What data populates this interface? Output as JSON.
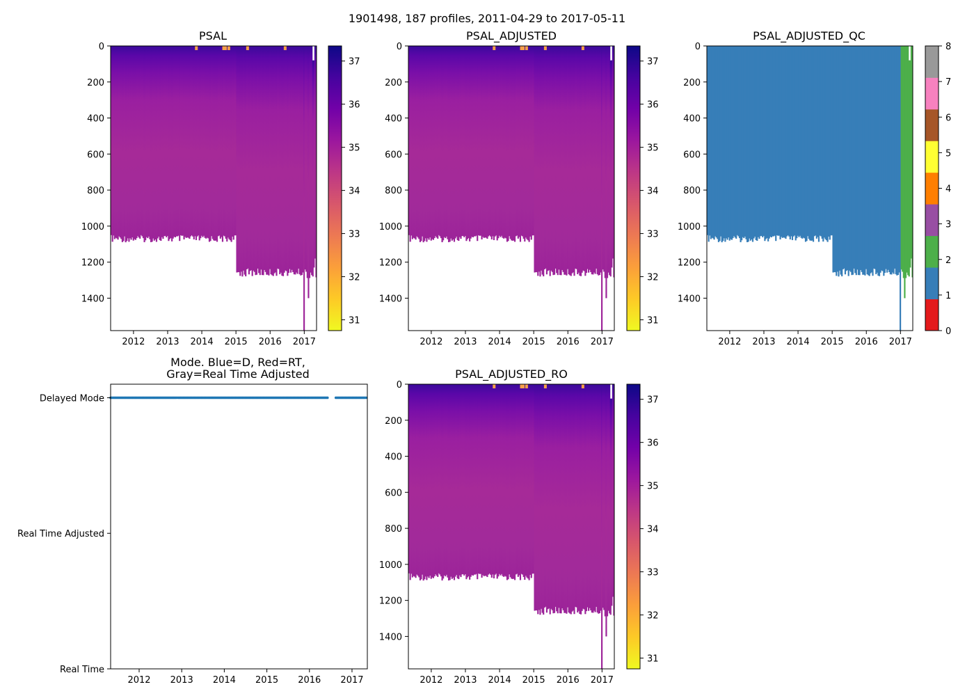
{
  "figure": {
    "suptitle": "1901498, 187 profiles, 2011-04-29 to 2017-05-11"
  },
  "colors": {
    "plasma_r": [
      "#f0f921",
      "#fdca26",
      "#fb9f3a",
      "#ed7953",
      "#d8576b",
      "#bd3786",
      "#9c179e",
      "#7201a8",
      "#46039f",
      "#0d0887"
    ],
    "qc": [
      "#e41a1c",
      "#377eb8",
      "#4daf4a",
      "#984ea3",
      "#ff7f00",
      "#ffff33",
      "#a65628",
      "#f781bf",
      "#999999"
    ],
    "mode_points": "#1f77b4"
  },
  "chart_data": [
    {
      "id": "psal",
      "type": "heatmap",
      "title": "PSAL",
      "xlabel": "",
      "ylabel": "",
      "x_ticks": [
        "2012",
        "2013",
        "2014",
        "2015",
        "2016",
        "2017"
      ],
      "x_tick_values": [
        2012,
        2013,
        2014,
        2015,
        2016,
        2017
      ],
      "xlim": [
        2011.33,
        2017.36
      ],
      "y_ticks": [
        "0",
        "200",
        "400",
        "600",
        "800",
        "1000",
        "1200",
        "1400"
      ],
      "y_tick_values": [
        0,
        200,
        400,
        600,
        800,
        1000,
        1200,
        1400
      ],
      "ylim": [
        1580,
        0
      ],
      "colorbar": {
        "ticks": [
          "31",
          "32",
          "33",
          "34",
          "35",
          "36",
          "37"
        ],
        "tick_values": [
          31,
          32,
          33,
          34,
          35,
          36,
          37
        ],
        "range": [
          30.75,
          37.35
        ],
        "cmap": "plasma_r"
      },
      "values_description": {
        "surface_salinity": 36.5,
        "deep_salinity": 34.8,
        "max_depth_2011_2014": 1060,
        "max_depth_2015_2017": 1250
      }
    },
    {
      "id": "psal-adjusted",
      "type": "heatmap",
      "title": "PSAL_ADJUSTED",
      "x_ticks": [
        "2012",
        "2013",
        "2014",
        "2015",
        "2016",
        "2017"
      ],
      "x_tick_values": [
        2012,
        2013,
        2014,
        2015,
        2016,
        2017
      ],
      "xlim": [
        2011.33,
        2017.36
      ],
      "y_ticks": [
        "0",
        "200",
        "400",
        "600",
        "800",
        "1000",
        "1200",
        "1400"
      ],
      "y_tick_values": [
        0,
        200,
        400,
        600,
        800,
        1000,
        1200,
        1400
      ],
      "ylim": [
        1580,
        0
      ],
      "colorbar": {
        "ticks": [
          "31",
          "32",
          "33",
          "34",
          "35",
          "36",
          "37"
        ],
        "tick_values": [
          31,
          32,
          33,
          34,
          35,
          36,
          37
        ],
        "range": [
          30.75,
          37.35
        ],
        "cmap": "plasma_r"
      }
    },
    {
      "id": "psal-adjusted-qc",
      "type": "heatmap",
      "title": "PSAL_ADJUSTED_QC",
      "x_ticks": [
        "2012",
        "2013",
        "2014",
        "2015",
        "2016",
        "2017"
      ],
      "x_tick_values": [
        2012,
        2013,
        2014,
        2015,
        2016,
        2017
      ],
      "xlim": [
        2011.33,
        2017.36
      ],
      "y_ticks": [
        "0",
        "200",
        "400",
        "600",
        "800",
        "1000",
        "1200",
        "1400"
      ],
      "y_tick_values": [
        0,
        200,
        400,
        600,
        800,
        1000,
        1200,
        1400
      ],
      "ylim": [
        1580,
        0
      ],
      "colorbar": {
        "ticks": [
          "0",
          "1",
          "2",
          "3",
          "4",
          "5",
          "6",
          "7",
          "8"
        ],
        "tick_values": [
          0,
          1,
          2,
          3,
          4,
          5,
          6,
          7,
          8
        ],
        "range": [
          0,
          8
        ],
        "cmap": "qc"
      },
      "qc_segments": [
        {
          "start": 2011.33,
          "end": 2017.0,
          "flag": 1
        },
        {
          "start": 2017.0,
          "end": 2017.36,
          "flag": 2
        }
      ]
    },
    {
      "id": "mode",
      "type": "scatter",
      "title": "Mode. Blue=D, Red=RT,",
      "title_line2": "Gray=Real Time Adjusted",
      "x_ticks": [
        "2012",
        "2013",
        "2014",
        "2015",
        "2016",
        "2017"
      ],
      "x_tick_values": [
        2012,
        2013,
        2014,
        2015,
        2016,
        2017
      ],
      "xlim": [
        2011.33,
        2017.36
      ],
      "y_ticks": [
        "Delayed Mode",
        "Real Time Adjusted",
        "Real Time"
      ],
      "y_tick_values": [
        2,
        1,
        0
      ],
      "ylim": [
        0,
        2.1
      ],
      "series": [
        {
          "name": "Delayed Mode",
          "y": 2,
          "ranges": [
            [
              2011.33,
              2016.45
            ],
            [
              2016.62,
              2017.36
            ]
          ]
        }
      ]
    },
    {
      "id": "psal-adjusted-ro",
      "type": "heatmap",
      "title": "PSAL_ADJUSTED_RO",
      "x_ticks": [
        "2012",
        "2013",
        "2014",
        "2015",
        "2016",
        "2017"
      ],
      "x_tick_values": [
        2012,
        2013,
        2014,
        2015,
        2016,
        2017
      ],
      "xlim": [
        2011.33,
        2017.36
      ],
      "y_ticks": [
        "0",
        "200",
        "400",
        "600",
        "800",
        "1000",
        "1200",
        "1400"
      ],
      "y_tick_values": [
        0,
        200,
        400,
        600,
        800,
        1000,
        1200,
        1400
      ],
      "ylim": [
        1580,
        0
      ],
      "colorbar": {
        "ticks": [
          "31",
          "32",
          "33",
          "34",
          "35",
          "36",
          "37"
        ],
        "tick_values": [
          31,
          32,
          33,
          34,
          35,
          36,
          37
        ],
        "range": [
          30.75,
          37.35
        ],
        "cmap": "plasma_r"
      }
    }
  ]
}
